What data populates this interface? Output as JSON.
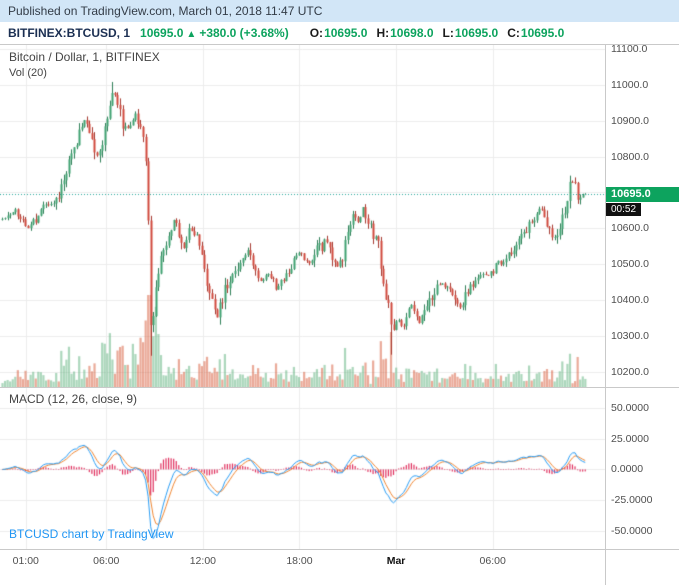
{
  "published_bar": {
    "text": "Published on TradingView.com, March 01, 2018 11:47 UTC"
  },
  "symbol_bar": {
    "symbol": "BITFINEX:BTCUSD, 1",
    "last_price": "10695.0",
    "direction_arrow": "▲",
    "change": "+380.0 (+3.68%)",
    "ohlc": [
      {
        "label": "O:",
        "value": "10695.0"
      },
      {
        "label": "H:",
        "value": "10698.0"
      },
      {
        "label": "L:",
        "value": "10695.0"
      },
      {
        "label": "C:",
        "value": "10695.0"
      }
    ]
  },
  "price_pane": {
    "legend_title": "Bitcoin / Dollar, 1, BITFINEX",
    "legend_vol": "Vol (20)"
  },
  "macd_pane": {
    "legend": "MACD (12, 26, close, 9)"
  },
  "attribution": {
    "text": "BTCUSD chart by TradingView"
  },
  "colors": {
    "published_bg": "#d2e6f7",
    "accent_green": "#0da35e",
    "symbol_text": "#1b2f52",
    "grid": "#ececec",
    "separator": "#c9c9c9",
    "candle_up": "#3fa271",
    "candle_up_border": "#2e7f57",
    "candle_down": "#d0493d",
    "candle_down_border": "#a63a30",
    "vol_up": "rgba(103,183,133,0.55)",
    "vol_down": "rgba(217,100,70,0.55)",
    "macd_line": "#2a9df4",
    "signal_line": "#ef8632",
    "histogram": "#e0315f",
    "current_price_line": "#26a69a",
    "countdown_bg": "#111111",
    "link_blue": "#2196f3"
  },
  "chart_data": [
    {
      "type": "candlestick",
      "title": "Bitcoin / Dollar, 1, BITFINEX",
      "symbol": "BITFINEX:BTCUSD",
      "interval": "1",
      "current_price": 10695.0,
      "current_price_label": "10695.0",
      "countdown": "00:52",
      "last_bar": {
        "open": 10695.0,
        "high": 10698.0,
        "low": 10695.0,
        "close": 10695.0
      },
      "y_ticks": [
        11100,
        11000,
        10900,
        10800,
        10700,
        10600,
        10500,
        10400,
        10300,
        10200
      ],
      "y_range": [
        10158,
        11111
      ],
      "x_axis": {
        "tick_hours": [
          1,
          6,
          12,
          18,
          24,
          30
        ],
        "tick_labels": [
          "01:00",
          "06:00",
          "12:00",
          "18:00",
          "Mar",
          "06:00"
        ],
        "note": "hours since Feb 28 2018 00:00 UTC; 24 = Mar 01 00:00"
      },
      "price_path_anchors_format": "[hours_since_feb28_0000_utc, price_usd]",
      "price_path_anchors": [
        [
          -0.6,
          10620
        ],
        [
          0.33,
          10650
        ],
        [
          1.14,
          10600
        ],
        [
          2.2,
          10665
        ],
        [
          3.0,
          10680
        ],
        [
          3.5,
          10760
        ],
        [
          4.24,
          10855
        ],
        [
          4.68,
          10905
        ],
        [
          5.18,
          10830
        ],
        [
          5.49,
          10790
        ],
        [
          5.98,
          10900
        ],
        [
          6.36,
          10990
        ],
        [
          6.73,
          10950
        ],
        [
          7.1,
          10870
        ],
        [
          7.47,
          10880
        ],
        [
          7.85,
          10925
        ],
        [
          8.22,
          10860
        ],
        [
          8.53,
          10760
        ],
        [
          8.78,
          10280
        ],
        [
          9.03,
          10430
        ],
        [
          9.34,
          10520
        ],
        [
          9.83,
          10580
        ],
        [
          10.27,
          10630
        ],
        [
          10.77,
          10540
        ],
        [
          11.2,
          10600
        ],
        [
          11.7,
          10570
        ],
        [
          12.26,
          10450
        ],
        [
          12.82,
          10345
        ],
        [
          13.44,
          10440
        ],
        [
          14.18,
          10485
        ],
        [
          14.74,
          10540
        ],
        [
          15.42,
          10450
        ],
        [
          16.05,
          10470
        ],
        [
          16.67,
          10440
        ],
        [
          17.4,
          10490
        ],
        [
          18.03,
          10540
        ],
        [
          18.53,
          10500
        ],
        [
          19.15,
          10545
        ],
        [
          19.65,
          10570
        ],
        [
          20.27,
          10490
        ],
        [
          20.77,
          10530
        ],
        [
          21.3,
          10650
        ],
        [
          21.64,
          10620
        ],
        [
          21.95,
          10655
        ],
        [
          22.38,
          10600
        ],
        [
          22.88,
          10555
        ],
        [
          23.25,
          10440
        ],
        [
          23.56,
          10370
        ],
        [
          23.75,
          10290
        ],
        [
          24.06,
          10350
        ],
        [
          24.49,
          10325
        ],
        [
          24.93,
          10390
        ],
        [
          25.36,
          10330
        ],
        [
          25.8,
          10370
        ],
        [
          26.3,
          10420
        ],
        [
          26.8,
          10450
        ],
        [
          27.35,
          10420
        ],
        [
          27.97,
          10375
        ],
        [
          28.6,
          10440
        ],
        [
          29.2,
          10465
        ],
        [
          29.84,
          10475
        ],
        [
          30.46,
          10505
        ],
        [
          31.08,
          10535
        ],
        [
          31.7,
          10575
        ],
        [
          32.32,
          10610
        ],
        [
          32.94,
          10655
        ],
        [
          33.44,
          10590
        ],
        [
          33.93,
          10565
        ],
        [
          34.43,
          10645
        ],
        [
          34.8,
          10715
        ],
        [
          35.05,
          10735
        ],
        [
          35.3,
          10680
        ],
        [
          35.75,
          10695
        ]
      ]
    },
    {
      "type": "bar",
      "name": "Vol (20)",
      "pane": "price",
      "description": "volume histogram at bottom of price pane; spikes during 06:00-09:00 sell-off, the 12:30 dip and the 23:45 drop"
    },
    {
      "type": "line",
      "name": "MACD (12, 26, close, 9)",
      "series": [
        {
          "name": "MACD line",
          "color": "#2a9df4"
        },
        {
          "name": "Signal line",
          "color": "#ef8632"
        },
        {
          "name": "Histogram",
          "color": "#e0315f"
        }
      ],
      "y_ticks": [
        50,
        25,
        0,
        -25,
        -50
      ],
      "y_range": [
        -64.5,
        66
      ]
    }
  ]
}
